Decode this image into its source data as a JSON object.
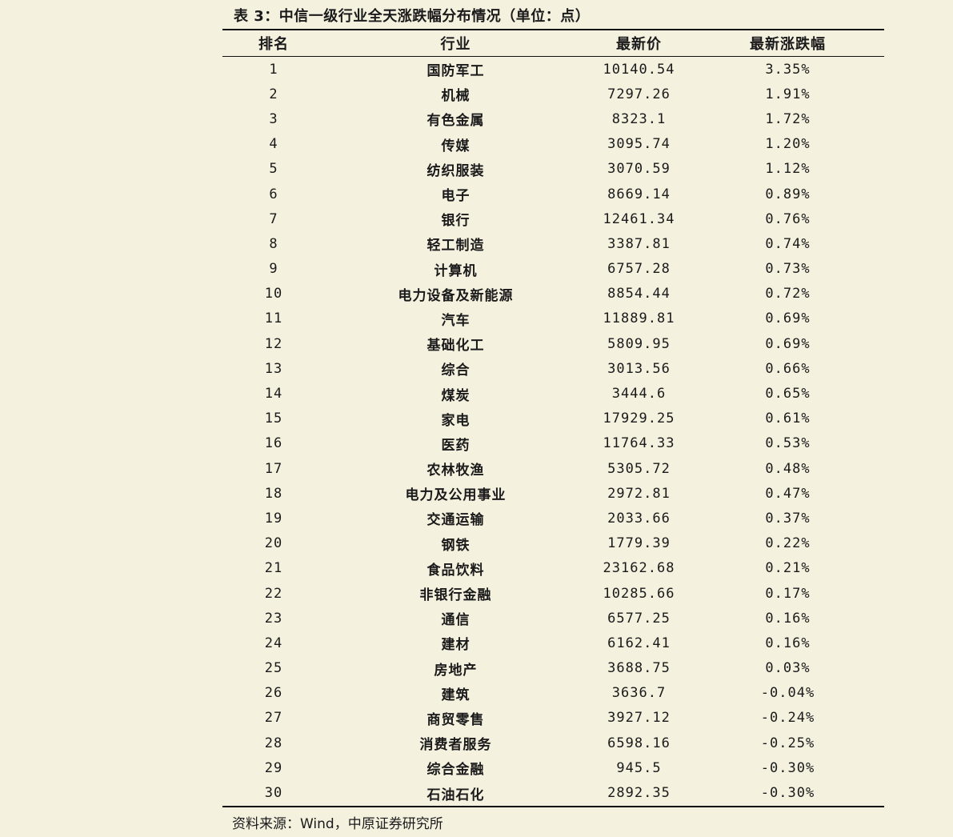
{
  "caption": "表 3：中信一级行业全天涨跌幅分布情况（单位：点）",
  "table": {
    "headers": [
      "排名",
      "行业",
      "最新价",
      "最新涨跌幅"
    ],
    "rows": [
      [
        "1",
        "国防军工",
        "10140.54",
        "3.35%"
      ],
      [
        "2",
        "机械",
        "7297.26",
        "1.91%"
      ],
      [
        "3",
        "有色金属",
        "8323.1",
        "1.72%"
      ],
      [
        "4",
        "传媒",
        "3095.74",
        "1.20%"
      ],
      [
        "5",
        "纺织服装",
        "3070.59",
        "1.12%"
      ],
      [
        "6",
        "电子",
        "8669.14",
        "0.89%"
      ],
      [
        "7",
        "银行",
        "12461.34",
        "0.76%"
      ],
      [
        "8",
        "轻工制造",
        "3387.81",
        "0.74%"
      ],
      [
        "9",
        "计算机",
        "6757.28",
        "0.73%"
      ],
      [
        "10",
        "电力设备及新能源",
        "8854.44",
        "0.72%"
      ],
      [
        "11",
        "汽车",
        "11889.81",
        "0.69%"
      ],
      [
        "12",
        "基础化工",
        "5809.95",
        "0.69%"
      ],
      [
        "13",
        "综合",
        "3013.56",
        "0.66%"
      ],
      [
        "14",
        "煤炭",
        "3444.6",
        "0.65%"
      ],
      [
        "15",
        "家电",
        "17929.25",
        "0.61%"
      ],
      [
        "16",
        "医药",
        "11764.33",
        "0.53%"
      ],
      [
        "17",
        "农林牧渔",
        "5305.72",
        "0.48%"
      ],
      [
        "18",
        "电力及公用事业",
        "2972.81",
        "0.47%"
      ],
      [
        "19",
        "交通运输",
        "2033.66",
        "0.37%"
      ],
      [
        "20",
        "钢铁",
        "1779.39",
        "0.22%"
      ],
      [
        "21",
        "食品饮料",
        "23162.68",
        "0.21%"
      ],
      [
        "22",
        "非银行金融",
        "10285.66",
        "0.17%"
      ],
      [
        "23",
        "通信",
        "6577.25",
        "0.16%"
      ],
      [
        "24",
        "建材",
        "6162.41",
        "0.16%"
      ],
      [
        "25",
        "房地产",
        "3688.75",
        "0.03%"
      ],
      [
        "26",
        "建筑",
        "3636.7",
        "-0.04%"
      ],
      [
        "27",
        "商贸零售",
        "3927.12",
        "-0.24%"
      ],
      [
        "28",
        "消费者服务",
        "6598.16",
        "-0.25%"
      ],
      [
        "29",
        "综合金融",
        "945.5",
        "-0.30%"
      ],
      [
        "30",
        "石油石化",
        "2892.35",
        "-0.30%"
      ]
    ]
  },
  "source": "资料来源：Wind，中原证券研究所"
}
